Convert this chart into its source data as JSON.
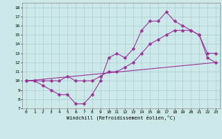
{
  "xlabel": "Windchill (Refroidissement éolien,°C)",
  "bg_color": "#cce8e8",
  "line_color": "#993399",
  "xlim": [
    -0.5,
    23.5
  ],
  "ylim": [
    7,
    18.5
  ],
  "xticks": [
    0,
    1,
    2,
    3,
    4,
    5,
    6,
    7,
    8,
    9,
    10,
    11,
    12,
    13,
    14,
    15,
    16,
    17,
    18,
    19,
    20,
    21,
    22,
    23
  ],
  "yticks": [
    7,
    8,
    9,
    10,
    11,
    12,
    13,
    14,
    15,
    16,
    17,
    18
  ],
  "line1_x": [
    0,
    1,
    2,
    3,
    4,
    5,
    6,
    7,
    8,
    9,
    10,
    11,
    12,
    13,
    14,
    15,
    16,
    17,
    18,
    19,
    20,
    21,
    22,
    23
  ],
  "line1_y": [
    10,
    10,
    9.5,
    9,
    8.5,
    8.5,
    7.5,
    7.5,
    8.5,
    10,
    12.5,
    13,
    12.5,
    13.5,
    15.5,
    16.5,
    16.5,
    17.5,
    16.5,
    16,
    15.5,
    15,
    13,
    13
  ],
  "line2_x": [
    0,
    1,
    2,
    3,
    4,
    5,
    6,
    7,
    8,
    9,
    10,
    11,
    12,
    13,
    14,
    15,
    16,
    17,
    18,
    19,
    20,
    21,
    22,
    23
  ],
  "line2_y": [
    10,
    10,
    10,
    10,
    10,
    10.5,
    10,
    10,
    10,
    10.5,
    11,
    11,
    11.5,
    12,
    13,
    14,
    14.5,
    15,
    15.5,
    15.5,
    15.5,
    15,
    12.5,
    12
  ],
  "line3_x": [
    0,
    23
  ],
  "line3_y": [
    10,
    12
  ],
  "grid_color": "#aacfcf",
  "markersize": 2.5,
  "linewidth": 0.8
}
